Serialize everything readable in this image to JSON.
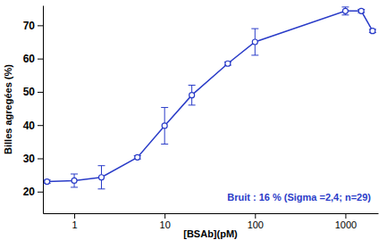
{
  "chart_data": {
    "type": "line",
    "x_label": "[BSAb](pM)",
    "y_label": "Billes agregées (%)",
    "annotation": "Bruit : 16 % (Sigma =2,4; n=29)",
    "x": [
      0.5,
      1,
      2,
      5,
      10,
      20,
      50,
      100,
      1000,
      1500,
      2000
    ],
    "values": [
      23,
      23.3,
      24.3,
      30.3,
      39.8,
      49,
      58.5,
      65,
      74.3,
      74.3,
      68.3
    ],
    "errors": [
      0.5,
      2,
      3.5,
      0.5,
      5.5,
      3,
      0.5,
      4,
      1.2,
      0.5,
      0.5
    ],
    "color": "#2a3cc8",
    "marker": "circle-open",
    "log": "x",
    "xlim": [
      0.45,
      2300
    ],
    "xticks": [
      1,
      10,
      100,
      1000
    ],
    "ylim": [
      13.5,
      76
    ],
    "yticks": [
      20,
      30,
      40,
      50,
      60,
      70
    ]
  }
}
